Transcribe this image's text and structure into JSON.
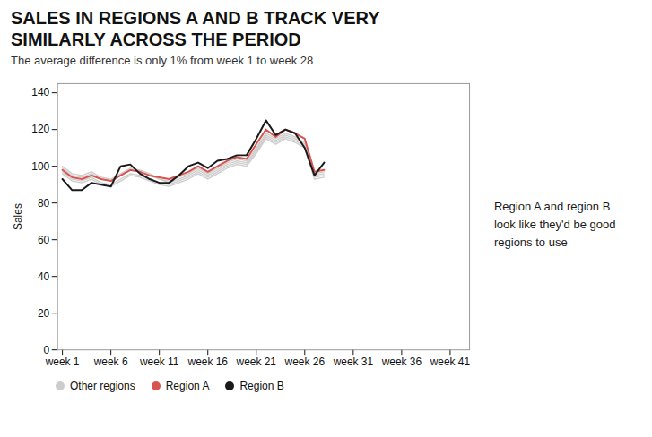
{
  "chart_data": {
    "type": "line",
    "title": "SALES IN REGIONS A AND B TRACK VERY\nSIMILARLY ACROSS THE PERIOD",
    "subtitle": "The average difference is only 1% from week 1 to week 28",
    "y_label": "Sales",
    "annotation": "Region A and region B\nlook like they'd be good\nregions to use",
    "x": [
      1,
      2,
      3,
      4,
      5,
      6,
      7,
      8,
      9,
      10,
      11,
      12,
      13,
      14,
      15,
      16,
      17,
      18,
      19,
      20,
      21,
      22,
      23,
      24,
      25,
      26,
      27,
      28
    ],
    "series": [
      {
        "name": "Other regions",
        "color": "#cccccc",
        "values": [
          100,
          96,
          95,
          97,
          94,
          93,
          96,
          99,
          98,
          96,
          93,
          92,
          94,
          96,
          99,
          96,
          99,
          102,
          104,
          103,
          110,
          118,
          115,
          118,
          116,
          113,
          96,
          97
        ]
      },
      {
        "name": "Other regions",
        "color": "#cccccc",
        "values": [
          97,
          93,
          92,
          94,
          91,
          90,
          93,
          96,
          95,
          93,
          91,
          90,
          92,
          94,
          97,
          94,
          97,
          100,
          102,
          101,
          108,
          116,
          113,
          116,
          114,
          111,
          94,
          95
        ]
      },
      {
        "name": "Other regions",
        "color": "#cccccc",
        "values": [
          99,
          95,
          94,
          96,
          93,
          92,
          95,
          98,
          97,
          95,
          93,
          91,
          93,
          95,
          98,
          95,
          98,
          101,
          103,
          102,
          109,
          117,
          114,
          117,
          115,
          112,
          95,
          96
        ]
      },
      {
        "name": "Other regions",
        "color": "#cccccc",
        "values": [
          96,
          92,
          91,
          93,
          90,
          89,
          92,
          95,
          94,
          92,
          90,
          89,
          91,
          93,
          96,
          93,
          96,
          99,
          101,
          100,
          107,
          115,
          112,
          115,
          113,
          110,
          93,
          94
        ]
      },
      {
        "name": "Region A",
        "color": "#d9534f",
        "values": [
          98,
          94,
          93,
          95,
          93,
          92,
          95,
          98,
          97,
          95,
          94,
          93,
          95,
          97,
          100,
          97,
          100,
          103,
          105,
          104,
          112,
          120,
          116,
          120,
          118,
          115,
          97,
          98
        ]
      },
      {
        "name": "Region B",
        "color": "#1a1a1a",
        "values": [
          93,
          87,
          87,
          91,
          90,
          89,
          100,
          101,
          96,
          93,
          91,
          91,
          95,
          100,
          102,
          99,
          103,
          104,
          106,
          106,
          115,
          125,
          117,
          120,
          118,
          110,
          95,
          102
        ]
      }
    ],
    "xlim": [
      0.5,
      43
    ],
    "xticks": [
      {
        "value": 1,
        "label": "week 1"
      },
      {
        "value": 6,
        "label": "week 6"
      },
      {
        "value": 11,
        "label": "week 11"
      },
      {
        "value": 16,
        "label": "week 16"
      },
      {
        "value": 21,
        "label": "week 21"
      },
      {
        "value": 26,
        "label": "week 26"
      },
      {
        "value": 31,
        "label": "week 31"
      },
      {
        "value": 36,
        "label": "week 36"
      },
      {
        "value": 41,
        "label": "week 41"
      }
    ],
    "ylim": [
      0,
      145
    ],
    "yticks": [
      0,
      20,
      40,
      60,
      80,
      100,
      120,
      140
    ],
    "grid": false,
    "legend": "bottom"
  }
}
